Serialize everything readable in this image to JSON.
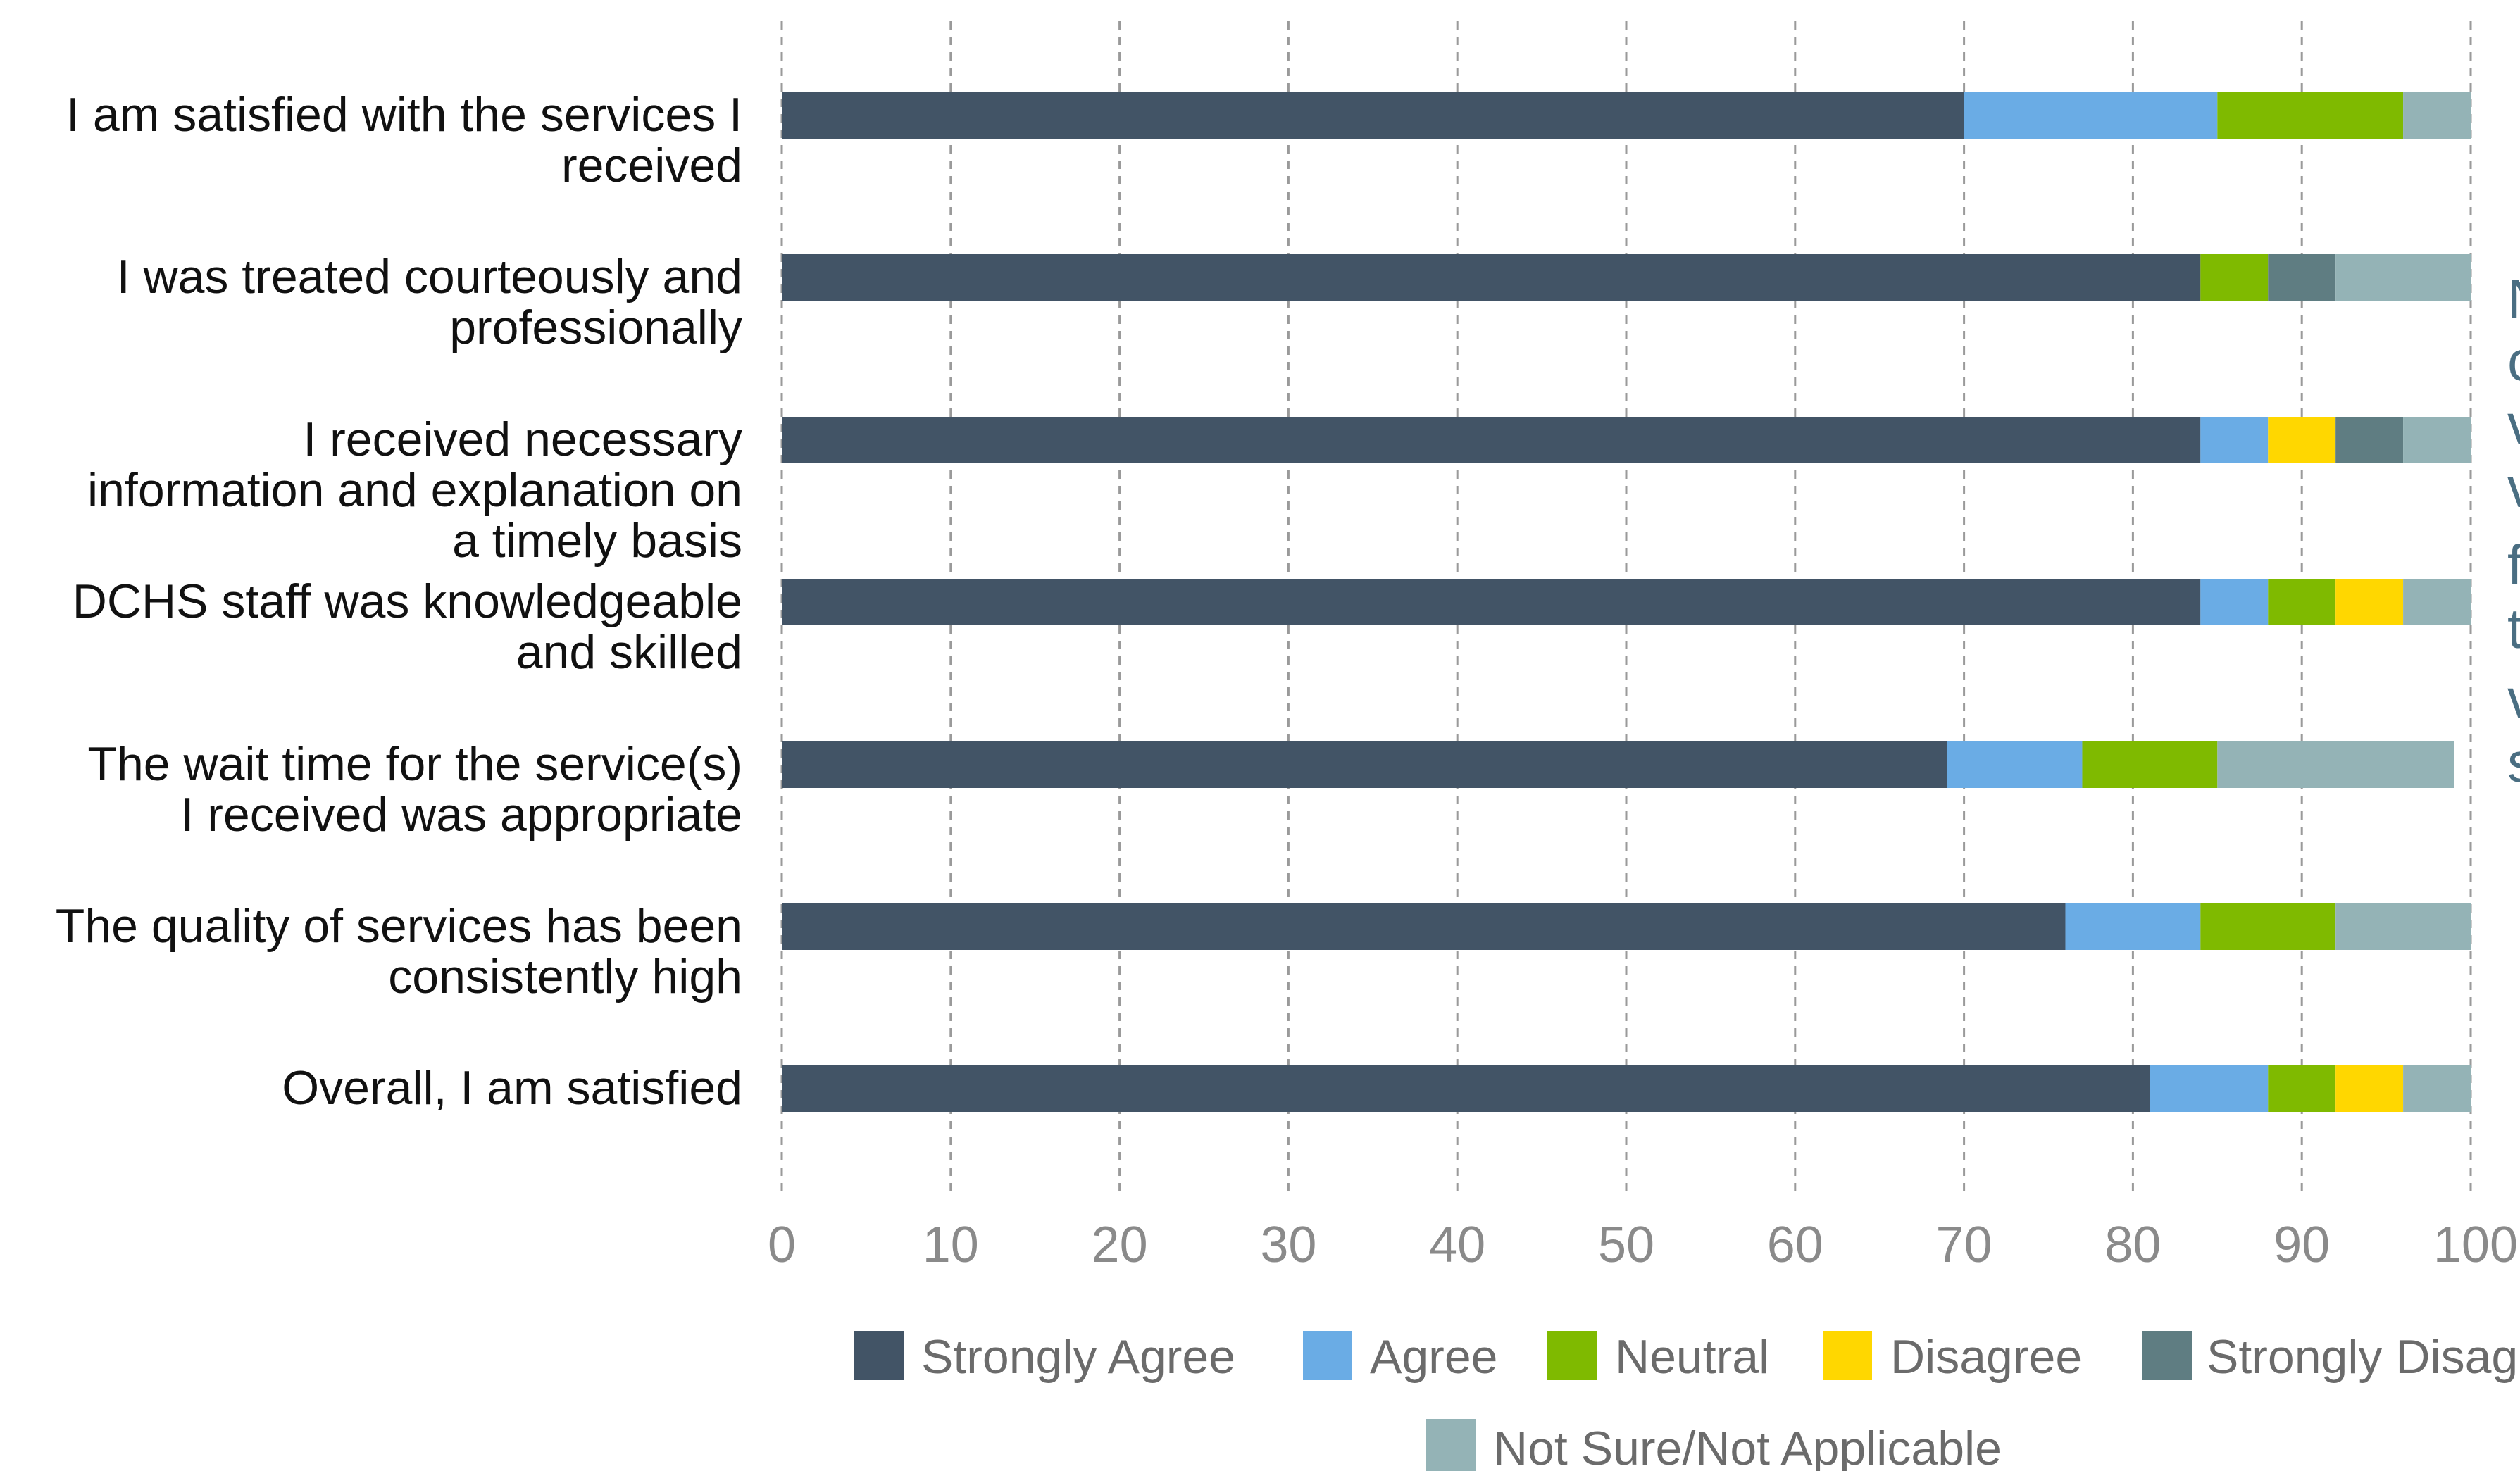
{
  "chart_data": {
    "type": "bar",
    "orientation": "horizontal",
    "stacked": true,
    "categories": [
      [
        "I am satisfied with the services I",
        "received"
      ],
      [
        "I was treated courteously and",
        "professionally"
      ],
      [
        "I received necessary",
        "information and explanation on",
        "a timely basis"
      ],
      [
        "DCHS staff was knowledgeable",
        "and skilled"
      ],
      [
        "The wait time for the service(s)",
        "I received was appropriate"
      ],
      [
        "The quality of services has been",
        "consistently high"
      ],
      [
        "Overall, I am satisfied"
      ]
    ],
    "series": [
      {
        "name": "Strongly Agree",
        "color": "#425466",
        "values": [
          70,
          84,
          84,
          84,
          69,
          76,
          81
        ]
      },
      {
        "name": "Agree",
        "color": "#6aace5",
        "values": [
          15,
          0,
          4,
          4,
          8,
          8,
          7
        ]
      },
      {
        "name": "Neutral",
        "color": "#7fba00",
        "values": [
          11,
          4,
          0,
          4,
          8,
          8,
          4
        ]
      },
      {
        "name": "Disagree",
        "color": "#ffd700",
        "values": [
          0,
          0,
          4,
          4,
          0,
          0,
          4
        ]
      },
      {
        "name": "Strongly Disag",
        "color": "#5f7d82",
        "values": [
          0,
          4,
          4,
          0,
          0,
          0,
          0
        ]
      },
      {
        "name": "Not Sure/Not Applicable",
        "color": "#94b3b6",
        "values": [
          4,
          8,
          4,
          4,
          14,
          8,
          4
        ]
      }
    ],
    "xlim": [
      0,
      100
    ],
    "xticks": [
      "0",
      "10",
      "20",
      "30",
      "40",
      "50",
      "60",
      "70",
      "80",
      "90",
      "100"
    ],
    "grid": "vertical dashed",
    "legend_position": "bottom"
  },
  "side_text": {
    "color": "#4a6e82",
    "letters": [
      "N",
      "c",
      "v",
      "v",
      "f",
      "t",
      "v",
      "s"
    ]
  }
}
